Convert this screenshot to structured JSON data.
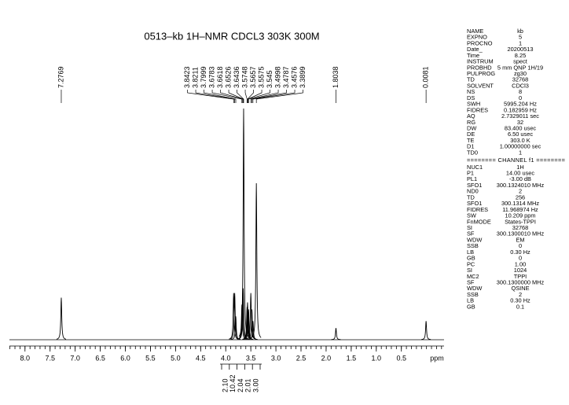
{
  "chart_data": {
    "type": "nmr",
    "title": "0513–kb  1H–NMR  CDCL3  303K 300M",
    "xlabel": "ppm",
    "xlim": [
      8.31,
      -0.35
    ],
    "xticks": [
      {
        "value": 8,
        "label": "8.0"
      },
      7.5,
      {
        "value": 7,
        "label": "7.0"
      },
      6.5,
      {
        "value": 6,
        "label": "6.0"
      },
      5.5,
      {
        "value": 5,
        "label": "5.0"
      },
      4.5,
      {
        "value": 4,
        "label": "4.0"
      },
      3.5,
      {
        "value": 3,
        "label": "3.0"
      },
      2.5,
      {
        "value": 2,
        "label": "2.0"
      },
      1.5,
      {
        "value": 1,
        "label": "1.0"
      },
      0.5
    ],
    "ylim": [
      0,
      100
    ],
    "color": "#000000",
    "peaks": [
      {
        "shift": 7.2769,
        "height": 18
      },
      {
        "shift": 3.8423,
        "height": 20
      },
      {
        "shift": 3.8211,
        "height": 20
      },
      {
        "shift": 3.7999,
        "height": 10
      },
      {
        "shift": 3.6783,
        "height": 15
      },
      {
        "shift": 3.6618,
        "height": 20
      },
      {
        "shift": 3.6526,
        "height": 22
      },
      {
        "shift": 3.6436,
        "height": 99
      },
      {
        "shift": 3.5748,
        "height": 14
      },
      {
        "shift": 3.5657,
        "height": 16
      },
      {
        "shift": 3.5575,
        "height": 12
      },
      {
        "shift": 3.545,
        "height": 13
      },
      {
        "shift": 3.4998,
        "height": 20
      },
      {
        "shift": 3.4787,
        "height": 13
      },
      {
        "shift": 3.4576,
        "height": 8
      },
      {
        "shift": 3.3899,
        "height": 67
      },
      {
        "shift": 1.8038,
        "height": 5
      },
      {
        "shift": 0.0081,
        "height": 8
      }
    ],
    "integrals": [
      {
        "value": 2.1,
        "label": "2.10"
      },
      {
        "value": 10.42,
        "label": "10.42"
      },
      {
        "value": 2.04,
        "label": "2.04"
      },
      {
        "value": 2.01,
        "label": "2.01"
      },
      {
        "value": 3,
        "label": "3.00"
      }
    ]
  },
  "parameters": {
    "acquisition": [
      [
        "NAME",
        "kb"
      ],
      [
        "EXPNO",
        "5"
      ],
      [
        "PROCNO",
        "1"
      ],
      [
        "Date_",
        "20200513"
      ],
      [
        "Time",
        "8.25"
      ],
      [
        "INSTRUM",
        "spect"
      ],
      [
        "PROBHD",
        "5 mm QNP 1H/19"
      ],
      [
        "PULPROG",
        "zg30"
      ],
      [
        "TD",
        "32768"
      ],
      [
        "SOLVENT",
        "CDCl3"
      ],
      [
        "NS",
        "8"
      ],
      [
        "DS",
        "0"
      ],
      [
        "SWH",
        "5995.204 Hz"
      ],
      [
        "FIDRES",
        "0.182959 Hz"
      ],
      [
        "AQ",
        "2.7329011 sec"
      ],
      [
        "RG",
        "32"
      ],
      [
        "DW",
        "83.400 usec"
      ],
      [
        "DE",
        "6.50 usec"
      ],
      [
        "TE",
        "303.0 K"
      ],
      [
        "D1",
        "1.00000000 sec"
      ],
      [
        "TD0",
        "1"
      ]
    ],
    "channel_header": "======== CHANNEL f1 ========",
    "channel": [
      [
        "NUC1",
        "1H"
      ],
      [
        "P1",
        "14.00 usec"
      ],
      [
        "PL1",
        "-3.00 dB"
      ],
      [
        "SFO1",
        "300.1324010 MHz"
      ],
      [
        "ND0",
        "2"
      ],
      [
        "TD",
        "256"
      ],
      [
        "SFO1",
        "300.1314 MHz"
      ],
      [
        "FIDRES",
        "11.968974 Hz"
      ],
      [
        "SW",
        "10.209 ppm"
      ],
      [
        "FnMODE",
        "States-TPPI"
      ],
      [
        "SI",
        "32768"
      ],
      [
        "SF",
        "300.1300010 MHz"
      ],
      [
        "WDW",
        "EM"
      ],
      [
        "SSB",
        "0"
      ],
      [
        "LB",
        "0.30 Hz"
      ],
      [
        "GB",
        "0"
      ],
      [
        "PC",
        "1.00"
      ],
      [
        "SI",
        "1024"
      ],
      [
        "MC2",
        "TPPI"
      ],
      [
        "SF",
        "300.1300000 MHz"
      ],
      [
        "WDW",
        "QSINE"
      ],
      [
        "SSB",
        "2"
      ],
      [
        "LB",
        "0.30 Hz"
      ],
      [
        "GB",
        "0.1"
      ]
    ]
  }
}
